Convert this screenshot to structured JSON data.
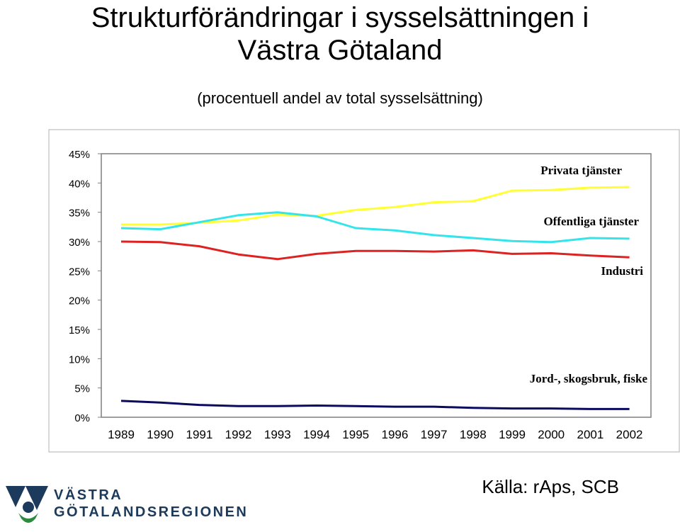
{
  "title_line1": "Strukturförändringar i sysselsättningen i",
  "title_line2": "Västra Götaland",
  "subtitle": "(procentuell andel av total sysselsättning)",
  "source": "Källa: rAps, SCB",
  "logo": {
    "line1": "VÄSTRA",
    "line2": "GÖTALANDSREGIONEN"
  },
  "chart_data": {
    "type": "line",
    "x": [
      "1989",
      "1990",
      "1991",
      "1992",
      "1993",
      "1994",
      "1995",
      "1996",
      "1997",
      "1998",
      "1999",
      "2000",
      "2001",
      "2002"
    ],
    "ylim": [
      0,
      45
    ],
    "yticks": [
      "0%",
      "5%",
      "10%",
      "15%",
      "20%",
      "25%",
      "30%",
      "35%",
      "40%",
      "45%"
    ],
    "grid": false,
    "series": [
      {
        "name": "Privata tjänster",
        "color": "#ffff33",
        "values": [
          32.9,
          32.9,
          33.2,
          33.6,
          34.6,
          34.4,
          35.4,
          35.9,
          36.7,
          36.9,
          38.7,
          38.8,
          39.2,
          39.3
        ]
      },
      {
        "name": "Offentliga tjänster",
        "color": "#33e5ea",
        "values": [
          32.3,
          32.1,
          33.3,
          34.5,
          35.0,
          34.3,
          32.3,
          31.9,
          31.1,
          30.6,
          30.1,
          29.9,
          30.6,
          30.5
        ]
      },
      {
        "name": "Industri",
        "color": "#dd2222",
        "values": [
          30.0,
          29.9,
          29.2,
          27.8,
          27.0,
          27.9,
          28.4,
          28.4,
          28.3,
          28.5,
          27.9,
          28.0,
          27.6,
          27.3
        ]
      },
      {
        "name": "Jord-, skogsbruk, fiske",
        "color": "#0a0a5e",
        "values": [
          2.8,
          2.5,
          2.1,
          1.9,
          1.9,
          2.0,
          1.9,
          1.8,
          1.8,
          1.6,
          1.5,
          1.5,
          1.4,
          1.4
        ]
      }
    ]
  }
}
